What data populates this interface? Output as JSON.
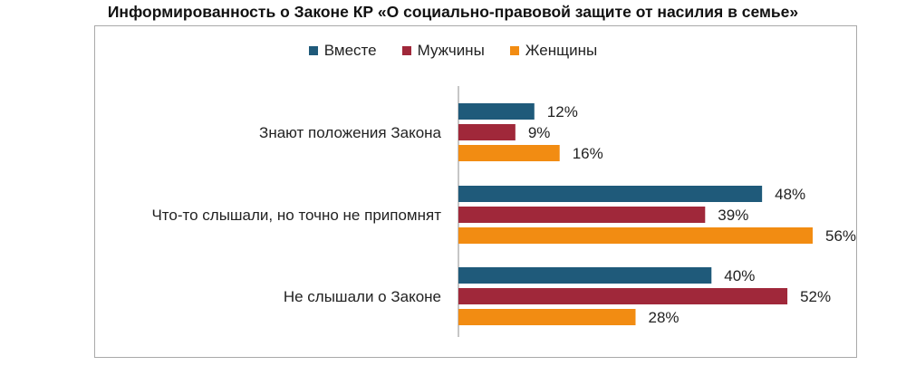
{
  "chart_data": {
    "type": "bar",
    "orientation": "horizontal",
    "title": "Информированность о Законе КР «О социально-правовой защите от насилия в семье»",
    "categories": [
      "Знают положения Закона",
      "Что-то слышали, но точно не припомнят",
      "Не слышали о Законе"
    ],
    "series": [
      {
        "name": "Вместе",
        "color": "#1f5a7a",
        "values": [
          12,
          48,
          40
        ]
      },
      {
        "name": "Мужчины",
        "color": "#a0283a",
        "values": [
          9,
          39,
          52
        ]
      },
      {
        "name": "Женщины",
        "color": "#f28c12",
        "values": [
          16,
          56,
          28
        ]
      }
    ],
    "value_suffix": "%",
    "xlim": [
      0,
      56
    ],
    "legend_position": "top",
    "grid": false
  }
}
